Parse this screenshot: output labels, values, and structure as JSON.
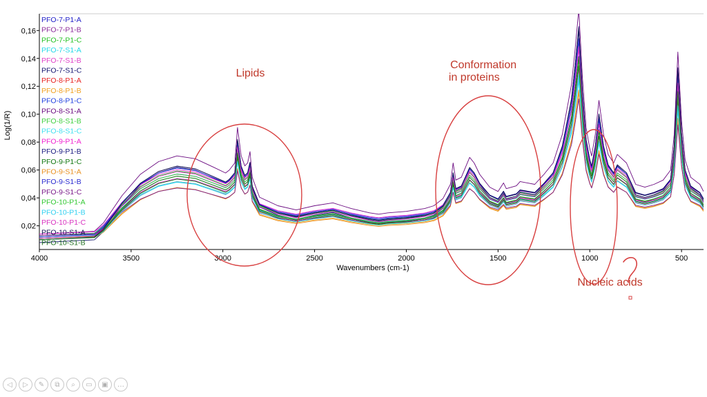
{
  "chart_data": {
    "type": "line",
    "xlabel": "Wavenumbers (cm-1)",
    "ylabel": "Log(1/R)",
    "xlim": [
      4000,
      380
    ],
    "ylim": [
      0.003,
      0.172
    ],
    "x_reversed": true,
    "xticks": [
      "4000",
      "3500",
      "3000",
      "2500",
      "2000",
      "1500",
      "1000",
      "500"
    ],
    "xtick_values": [
      4000,
      3500,
      3000,
      2500,
      2000,
      1500,
      1000,
      500
    ],
    "yticks": [
      "0,02",
      "0,04",
      "0,06",
      "0,08",
      "0,10",
      "0,12",
      "0,14",
      "0,16"
    ],
    "ytick_values": [
      0.02,
      0.04,
      0.06,
      0.08,
      0.1,
      0.12,
      0.14,
      0.16
    ],
    "grid": false,
    "legend_position": "top-left",
    "base_profile": {
      "x": [
        4000,
        3700,
        3650,
        3550,
        3450,
        3350,
        3250,
        3150,
        3050,
        2985,
        2965,
        2935,
        2920,
        2900,
        2880,
        2865,
        2852,
        2840,
        2800,
        2700,
        2600,
        2500,
        2400,
        2350,
        2300,
        2200,
        2150,
        2100,
        2000,
        1950,
        1900,
        1850,
        1800,
        1760,
        1745,
        1730,
        1700,
        1655,
        1630,
        1600,
        1545,
        1500,
        1470,
        1455,
        1400,
        1380,
        1300,
        1250,
        1200,
        1150,
        1100,
        1080,
        1060,
        1040,
        1020,
        1000,
        990,
        970,
        950,
        925,
        900,
        870,
        850,
        800,
        750,
        700,
        650,
        600,
        560,
        540,
        520,
        500,
        480,
        450,
        400,
        380
      ],
      "y": [
        0.01,
        0.012,
        0.018,
        0.037,
        0.052,
        0.061,
        0.065,
        0.063,
        0.057,
        0.053,
        0.055,
        0.06,
        0.085,
        0.065,
        0.058,
        0.06,
        0.068,
        0.05,
        0.036,
        0.03,
        0.027,
        0.03,
        0.032,
        0.03,
        0.028,
        0.025,
        0.024,
        0.025,
        0.026,
        0.027,
        0.028,
        0.03,
        0.035,
        0.045,
        0.06,
        0.048,
        0.05,
        0.064,
        0.06,
        0.052,
        0.043,
        0.04,
        0.046,
        0.042,
        0.044,
        0.047,
        0.045,
        0.052,
        0.06,
        0.08,
        0.115,
        0.14,
        0.168,
        0.12,
        0.085,
        0.07,
        0.065,
        0.08,
        0.104,
        0.08,
        0.066,
        0.06,
        0.066,
        0.06,
        0.045,
        0.043,
        0.045,
        0.048,
        0.055,
        0.08,
        0.138,
        0.09,
        0.062,
        0.05,
        0.045,
        0.04
      ]
    },
    "series": [
      {
        "name": "PFO-7-P1-A",
        "color": "#2020c8",
        "scale": 0.82,
        "offset": 0.002
      },
      {
        "name": "PFO-7-P1-B",
        "color": "#8b2a9a",
        "scale": 0.78,
        "offset": 0.001
      },
      {
        "name": "PFO-7-P1-C",
        "color": "#22c222",
        "scale": 0.86,
        "offset": 0.002
      },
      {
        "name": "PFO-7-S1-A",
        "color": "#22d8e8",
        "scale": 0.7,
        "offset": 0.003
      },
      {
        "name": "PFO-7-S1-B",
        "color": "#e040c8",
        "scale": 0.76,
        "offset": 0.002
      },
      {
        "name": "PFO-7-S1-C",
        "color": "#141470",
        "scale": 0.98,
        "offset": -0.002
      },
      {
        "name": "PFO-8-P1-A",
        "color": "#e82020",
        "scale": 0.74,
        "offset": 0.001
      },
      {
        "name": "PFO-8-P1-B",
        "color": "#f0a020",
        "scale": 0.66,
        "offset": 0.001
      },
      {
        "name": "PFO-8-P1-C",
        "color": "#2040e0",
        "scale": 0.88,
        "offset": 0.003
      },
      {
        "name": "PFO-8-S1-A",
        "color": "#6a0a80",
        "scale": 1.02,
        "offset": 0.004
      },
      {
        "name": "PFO-8-S1-B",
        "color": "#40d040",
        "scale": 0.8,
        "offset": 0.003
      },
      {
        "name": "PFO-8-S1-C",
        "color": "#40e0f0",
        "scale": 0.72,
        "offset": 0.002
      },
      {
        "name": "PFO-9-P1-A",
        "color": "#f020d0",
        "scale": 0.84,
        "offset": 0.004
      },
      {
        "name": "PFO-9-P1-B",
        "color": "#1a1a80",
        "scale": 0.94,
        "offset": 0.001
      },
      {
        "name": "PFO-9-P1-C",
        "color": "#117711",
        "scale": 0.79,
        "offset": 0.0
      },
      {
        "name": "PFO-9-S1-A",
        "color": "#e89020",
        "scale": 0.68,
        "offset": 0.0
      },
      {
        "name": "PFO-9-S1-B",
        "color": "#2a2ad0",
        "scale": 0.9,
        "offset": 0.002
      },
      {
        "name": "PFO-9-S1-C",
        "color": "#7a1a8a",
        "scale": 0.62,
        "offset": 0.003
      },
      {
        "name": "PFO-10-P1-A",
        "color": "#30c830",
        "scale": 0.81,
        "offset": 0.001
      },
      {
        "name": "PFO-10-P1-B",
        "color": "#30d0f0",
        "scale": 0.75,
        "offset": 0.0
      },
      {
        "name": "PFO-10-P1-C",
        "color": "#d830c0",
        "scale": 0.87,
        "offset": 0.001
      },
      {
        "name": "PFO-10-S1-A",
        "color": "#101050",
        "scale": 0.96,
        "offset": 0.0
      },
      {
        "name": "PFO-10-S1-B",
        "color": "#207020",
        "scale": 0.83,
        "offset": 0.0
      }
    ],
    "annotations": [
      {
        "text": "Lipids",
        "x": 2850,
        "y": 0.127
      },
      {
        "text": "Conformation",
        "x": 1580,
        "y": 0.133
      },
      {
        "text": "in proteins",
        "x": 1630,
        "y": 0.124
      },
      {
        "text": "Nucleic acids",
        "x": 890,
        "y": -0.023
      }
    ]
  },
  "annotation_color": "#c0392b",
  "toolbar_icons": [
    "back-icon",
    "forward-icon",
    "pen-icon",
    "copy-slides-icon",
    "zoom-icon",
    "subtitles-icon",
    "screen-off-icon",
    "more-icon"
  ]
}
